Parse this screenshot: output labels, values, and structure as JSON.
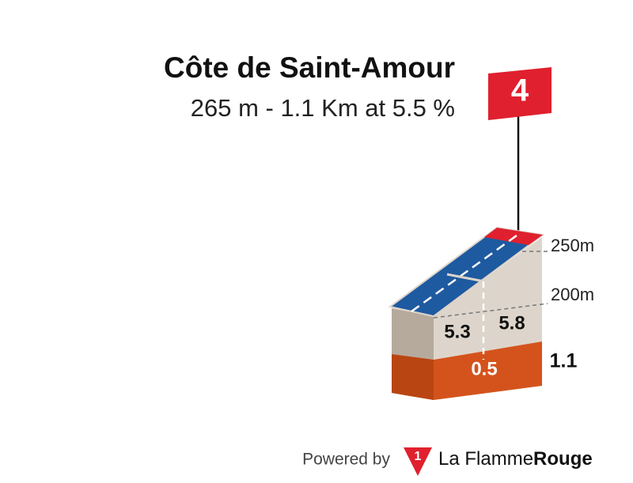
{
  "title": "Côte de Saint-Amour",
  "subtitle": "265 m - 1.1 Km at 5.5 %",
  "category": "4",
  "altitude_labels": [
    "250m",
    "200m"
  ],
  "segments": [
    {
      "gradient": "5.3"
    },
    {
      "gradient": "5.8"
    }
  ],
  "distance_marker": "0.5",
  "total_distance": "1.1",
  "footer": {
    "powered_by": "Powered by",
    "logo": "1",
    "brand_light": "La Flamme",
    "brand_bold": "Rouge"
  }
}
